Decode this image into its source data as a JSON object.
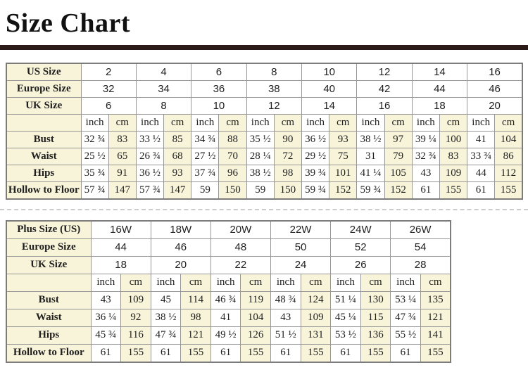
{
  "title": "Size Chart",
  "colors": {
    "accent_bar": "#2c1a18",
    "cell_cream": "#f8f4d9",
    "grid_border": "#979797",
    "outer_border": "#7c7c7c"
  },
  "tables": [
    {
      "name": "standard-sizes",
      "unit_labels": [
        "inch",
        "cm"
      ],
      "size_rows": [
        {
          "label": "US Size",
          "values": [
            "2",
            "4",
            "6",
            "8",
            "10",
            "12",
            "14",
            "16"
          ]
        },
        {
          "label": "Europe Size",
          "values": [
            "32",
            "34",
            "36",
            "38",
            "40",
            "42",
            "44",
            "46"
          ]
        },
        {
          "label": "UK Size",
          "values": [
            "6",
            "8",
            "10",
            "12",
            "14",
            "16",
            "18",
            "20"
          ]
        }
      ],
      "measure_rows": [
        {
          "label": "Bust",
          "pairs": [
            [
              "32 ¾",
              "83"
            ],
            [
              "33 ½",
              "85"
            ],
            [
              "34 ¾",
              "88"
            ],
            [
              "35 ½",
              "90"
            ],
            [
              "36 ½",
              "93"
            ],
            [
              "38 ½",
              "97"
            ],
            [
              "39 ¼",
              "100"
            ],
            [
              "41",
              "104"
            ]
          ]
        },
        {
          "label": "Waist",
          "pairs": [
            [
              "25 ½",
              "65"
            ],
            [
              "26 ¾",
              "68"
            ],
            [
              "27 ½",
              "70"
            ],
            [
              "28 ¼",
              "72"
            ],
            [
              "29 ½",
              "75"
            ],
            [
              "31",
              "79"
            ],
            [
              "32 ¾",
              "83"
            ],
            [
              "33 ¾",
              "86"
            ]
          ]
        },
        {
          "label": "Hips",
          "pairs": [
            [
              "35 ¾",
              "91"
            ],
            [
              "36 ½",
              "93"
            ],
            [
              "37 ¾",
              "96"
            ],
            [
              "38 ½",
              "98"
            ],
            [
              "39 ¾",
              "101"
            ],
            [
              "41 ¼",
              "105"
            ],
            [
              "43",
              "109"
            ],
            [
              "44",
              "112"
            ]
          ]
        },
        {
          "label": "Hollow to Floor",
          "pairs": [
            [
              "57 ¾",
              "147"
            ],
            [
              "57 ¾",
              "147"
            ],
            [
              "59",
              "150"
            ],
            [
              "59",
              "150"
            ],
            [
              "59 ¾",
              "152"
            ],
            [
              "59 ¾",
              "152"
            ],
            [
              "61",
              "155"
            ],
            [
              "61",
              "155"
            ]
          ]
        }
      ]
    },
    {
      "name": "plus-sizes",
      "unit_labels": [
        "inch",
        "cm"
      ],
      "size_rows": [
        {
          "label": "Plus Size (US)",
          "values": [
            "16W",
            "18W",
            "20W",
            "22W",
            "24W",
            "26W"
          ]
        },
        {
          "label": "Europe Size",
          "values": [
            "44",
            "46",
            "48",
            "50",
            "52",
            "54"
          ]
        },
        {
          "label": "UK Size",
          "values": [
            "18",
            "20",
            "22",
            "24",
            "26",
            "28"
          ]
        }
      ],
      "measure_rows": [
        {
          "label": "Bust",
          "pairs": [
            [
              "43",
              "109"
            ],
            [
              "45",
              "114"
            ],
            [
              "46 ¾",
              "119"
            ],
            [
              "48 ¾",
              "124"
            ],
            [
              "51 ¼",
              "130"
            ],
            [
              "53 ¼",
              "135"
            ]
          ]
        },
        {
          "label": "Waist",
          "pairs": [
            [
              "36 ¼",
              "92"
            ],
            [
              "38 ½",
              "98"
            ],
            [
              "41",
              "104"
            ],
            [
              "43",
              "109"
            ],
            [
              "45 ¼",
              "115"
            ],
            [
              "47 ¾",
              "121"
            ]
          ]
        },
        {
          "label": "Hips",
          "pairs": [
            [
              "45 ¾",
              "116"
            ],
            [
              "47 ¾",
              "121"
            ],
            [
              "49 ½",
              "126"
            ],
            [
              "51 ½",
              "131"
            ],
            [
              "53 ½",
              "136"
            ],
            [
              "55 ½",
              "141"
            ]
          ]
        },
        {
          "label": "Hollow to Floor",
          "pairs": [
            [
              "61",
              "155"
            ],
            [
              "61",
              "155"
            ],
            [
              "61",
              "155"
            ],
            [
              "61",
              "155"
            ],
            [
              "61",
              "155"
            ],
            [
              "61",
              "155"
            ]
          ]
        }
      ]
    }
  ]
}
